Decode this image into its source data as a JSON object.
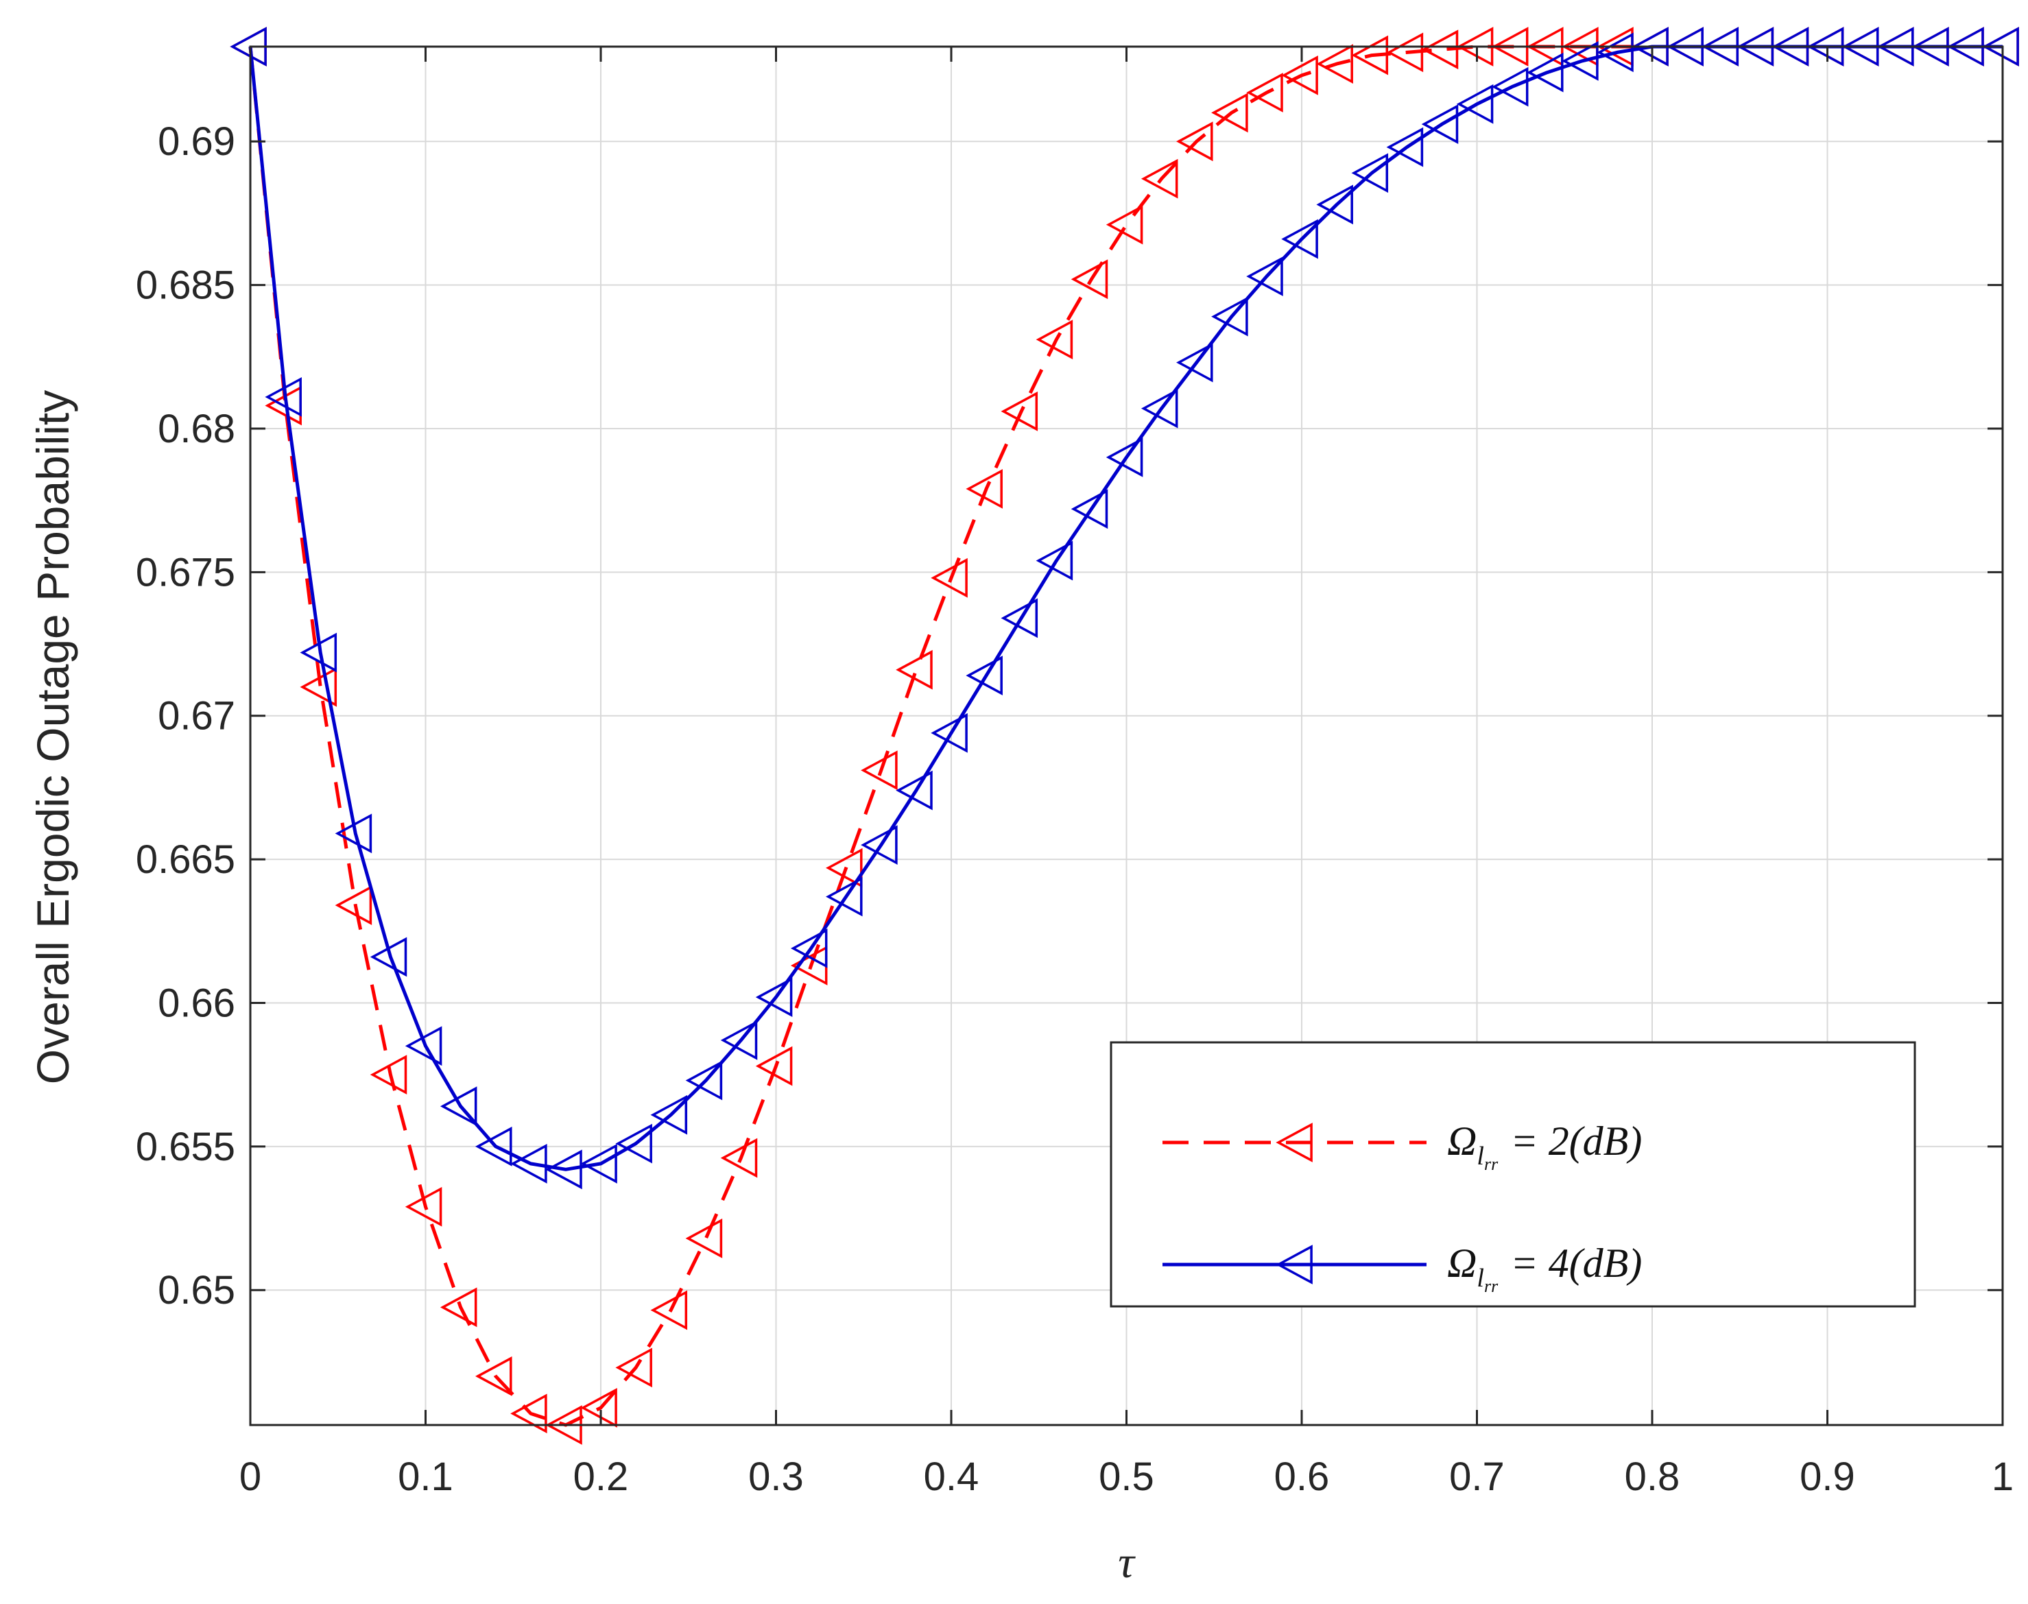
{
  "chart_data": {
    "type": "line",
    "xlabel": "τ",
    "ylabel": "Overall Ergodic Outage Probability",
    "xlim": [
      0,
      1
    ],
    "ylim": [
      0.6453,
      0.6933
    ],
    "xticks": [
      "0",
      "0.1",
      "0.2",
      "0.3",
      "0.4",
      "0.5",
      "0.6",
      "0.7",
      "0.8",
      "0.9",
      "1"
    ],
    "yticks": [
      "0.65",
      "0.655",
      "0.66",
      "0.665",
      "0.67",
      "0.675",
      "0.68",
      "0.685",
      "0.69"
    ],
    "grid": true,
    "legend_position": "bottom-right",
    "x": [
      0,
      0.02,
      0.04,
      0.06,
      0.08,
      0.1,
      0.12,
      0.14,
      0.16,
      0.18,
      0.2,
      0.22,
      0.24,
      0.26,
      0.28,
      0.3,
      0.32,
      0.34,
      0.36,
      0.38,
      0.4,
      0.42,
      0.44,
      0.46,
      0.48,
      0.5,
      0.52,
      0.54,
      0.56,
      0.58,
      0.6,
      0.62,
      0.64,
      0.66,
      0.68,
      0.7,
      0.72,
      0.74,
      0.76,
      0.78,
      0.8,
      0.82,
      0.84,
      0.86,
      0.88,
      0.9,
      0.92,
      0.94,
      0.96,
      0.98,
      1.0
    ],
    "series": [
      {
        "name": "Ω_{l_{rr}} = 2(dB)",
        "color": "#ff0000",
        "line_style": "dashed",
        "marker": "left-triangle",
        "values": [
          0.6933,
          0.6808,
          0.671,
          0.6634,
          0.6575,
          0.6529,
          0.6494,
          0.647,
          0.6457,
          0.6453,
          0.6459,
          0.6473,
          0.6493,
          0.6518,
          0.6546,
          0.6578,
          0.6613,
          0.6647,
          0.6681,
          0.6716,
          0.6748,
          0.6779,
          0.6806,
          0.6831,
          0.6852,
          0.6871,
          0.6887,
          0.69,
          0.691,
          0.6917,
          0.6923,
          0.6927,
          0.693,
          0.6931,
          0.6932,
          0.6933,
          0.6933,
          0.6933,
          0.6933,
          0.6933,
          0.6933,
          0.6933,
          0.6933,
          0.6933,
          0.6933,
          0.6933,
          0.6933,
          0.6933,
          0.6933,
          0.6933,
          0.6933
        ]
      },
      {
        "name": "Ω_{l_{rr}} = 4(dB)",
        "color": "#0000cc",
        "line_style": "solid",
        "marker": "left-triangle",
        "values": [
          0.6933,
          0.6811,
          0.6722,
          0.6659,
          0.6616,
          0.6585,
          0.6564,
          0.655,
          0.6544,
          0.6542,
          0.6544,
          0.6551,
          0.6561,
          0.6573,
          0.6587,
          0.6602,
          0.6619,
          0.6637,
          0.6655,
          0.6674,
          0.6694,
          0.6714,
          0.6734,
          0.6754,
          0.6772,
          0.679,
          0.6807,
          0.6823,
          0.6839,
          0.6853,
          0.6866,
          0.6878,
          0.6889,
          0.6898,
          0.6906,
          0.6913,
          0.6919,
          0.6924,
          0.6928,
          0.6931,
          0.6933,
          0.6933,
          0.6933,
          0.6933,
          0.6933,
          0.6933,
          0.6933,
          0.6933,
          0.6933,
          0.6933,
          0.6933
        ]
      }
    ]
  },
  "legend": {
    "items": [
      {
        "symbol": "Ω",
        "subscript": "l",
        "subsub": "rr",
        "rest": "= 2(dB)"
      },
      {
        "symbol": "Ω",
        "subscript": "l",
        "subsub": "rr",
        "rest": "= 4(dB)"
      }
    ]
  }
}
